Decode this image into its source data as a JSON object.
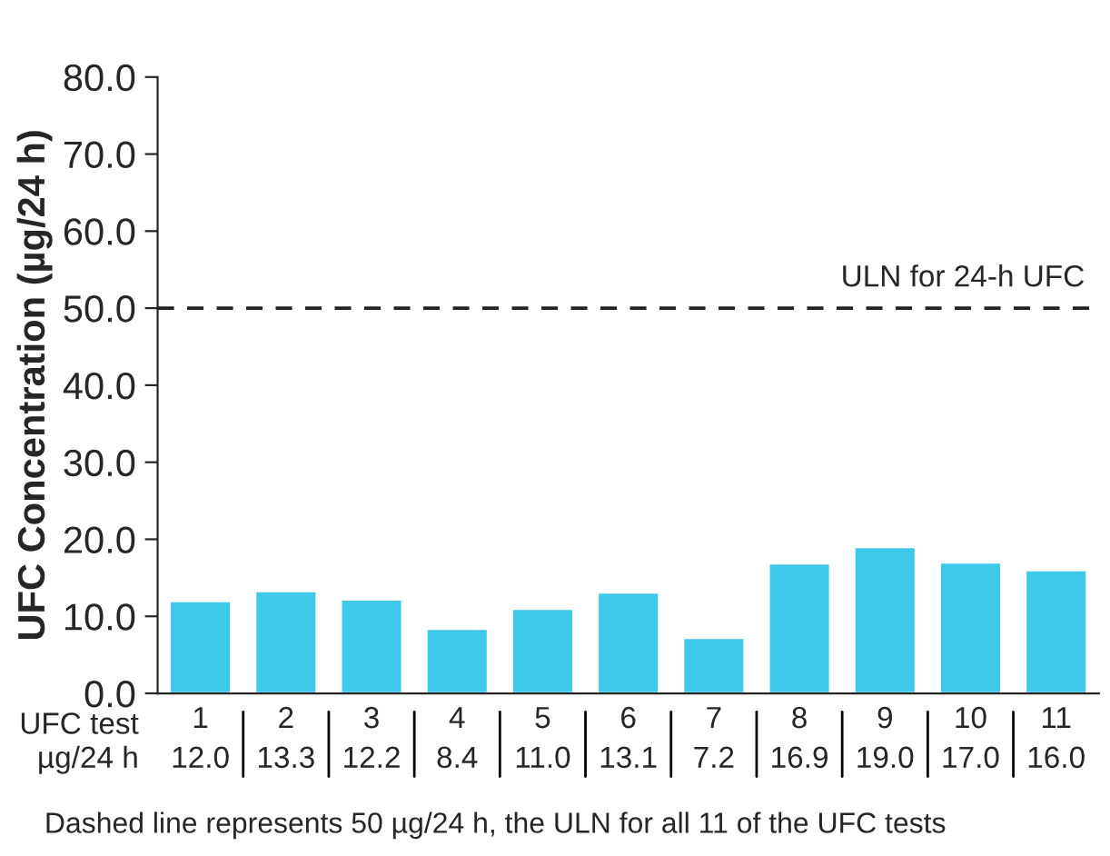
{
  "chart_data": {
    "type": "bar",
    "ylabel": "UFC Concentration (µg/24 h)",
    "categories": [
      "1",
      "2",
      "3",
      "4",
      "5",
      "6",
      "7",
      "8",
      "9",
      "10",
      "11"
    ],
    "values": [
      12.0,
      13.3,
      12.2,
      8.4,
      11.0,
      13.1,
      7.2,
      16.9,
      19.0,
      17.0,
      16.0
    ],
    "value_labels": [
      "12.0",
      "13.3",
      "12.2",
      "8.4",
      "11.0",
      "13.1",
      "7.2",
      "16.9",
      "19.0",
      "17.0",
      "16.0"
    ],
    "color": "#3ec8ea",
    "ylim": [
      0,
      80
    ],
    "yticks": [
      {
        "value": 0,
        "label": "0.0"
      },
      {
        "value": 10,
        "label": "10.0"
      },
      {
        "value": 20,
        "label": "20.0"
      },
      {
        "value": 30,
        "label": "30.0"
      },
      {
        "value": 40,
        "label": "40.0"
      },
      {
        "value": 50,
        "label": "50.0"
      },
      {
        "value": 60,
        "label": "60.0"
      },
      {
        "value": 70,
        "label": "70.0"
      },
      {
        "value": 80,
        "label": "80.0"
      }
    ],
    "ref_lines": [
      {
        "axis": "y",
        "value": 50,
        "label": "ULN for 24-h UFC",
        "color": "#222222",
        "line_style": "dashed"
      }
    ],
    "annotations": [
      "UFC test",
      "µg/24 h",
      "Dashed line represents 50 µg/24 h, the ULN for all 11 of the UFC tests"
    ],
    "grid": false,
    "legend": false
  }
}
